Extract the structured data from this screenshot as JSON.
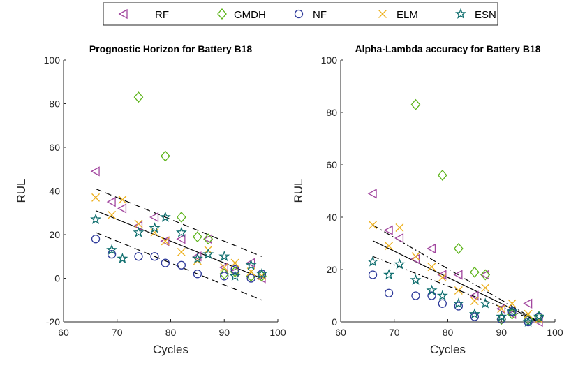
{
  "legend": {
    "entries": [
      {
        "name": "RF",
        "marker": "triangle-left",
        "color": "#A2479F"
      },
      {
        "name": "GMDH",
        "marker": "diamond",
        "color": "#5BB318"
      },
      {
        "name": "NF",
        "marker": "circle",
        "color": "#2E3A9A"
      },
      {
        "name": "ELM",
        "marker": "cross",
        "color": "#EDB120"
      },
      {
        "name": "ESN",
        "marker": "star",
        "color": "#0F6E6E"
      }
    ]
  },
  "chart_data": [
    {
      "type": "scatter",
      "title": "Prognostic Horizon for Battery B18",
      "xlabel": "Cycles",
      "ylabel": "RUL",
      "xlim": [
        60,
        100
      ],
      "ylim": [
        -20,
        100
      ],
      "xticks": [
        60,
        70,
        80,
        90,
        100
      ],
      "yticks": [
        -20,
        0,
        20,
        40,
        60,
        80,
        100
      ],
      "series": [
        {
          "name": "RF",
          "x": [
            66,
            69,
            71,
            74,
            77,
            79,
            82,
            85,
            87,
            90,
            92,
            95,
            97
          ],
          "y": [
            49,
            35,
            32,
            24,
            28,
            17,
            18,
            10,
            18,
            5,
            3,
            7,
            0
          ]
        },
        {
          "name": "GMDH",
          "x": [
            74,
            79,
            82,
            85,
            87,
            90,
            92,
            95,
            97
          ],
          "y": [
            83,
            56,
            28,
            19,
            18,
            2,
            3,
            1,
            1
          ]
        },
        {
          "name": "NF",
          "x": [
            66,
            69,
            74,
            77,
            79,
            82,
            85,
            90,
            92,
            95,
            97
          ],
          "y": [
            18,
            11,
            10,
            10,
            7,
            6,
            2,
            1,
            4,
            0,
            2
          ]
        },
        {
          "name": "ELM",
          "x": [
            66,
            69,
            71,
            74,
            77,
            79,
            82,
            85,
            87,
            90,
            92,
            95,
            97
          ],
          "y": [
            37,
            29,
            36,
            25,
            21,
            17,
            12,
            8,
            13,
            5,
            7,
            3,
            1
          ]
        },
        {
          "name": "ESN",
          "x": [
            66,
            69,
            71,
            74,
            77,
            79,
            82,
            85,
            87,
            90,
            92,
            95,
            97
          ],
          "y": [
            27,
            13,
            9,
            21,
            23,
            28,
            21,
            9,
            11,
            10,
            1,
            6,
            2
          ]
        }
      ],
      "reference_lines": [
        {
          "style": "solid",
          "x": [
            66,
            97
          ],
          "y": [
            31,
            0
          ]
        },
        {
          "style": "dashed",
          "x": [
            66,
            97
          ],
          "y": [
            41,
            10
          ]
        },
        {
          "style": "dashed",
          "x": [
            66,
            97
          ],
          "y": [
            21,
            -10
          ]
        }
      ]
    },
    {
      "type": "scatter",
      "title": "Alpha-Lambda accuracy for Battery B18",
      "xlabel": "Cycles",
      "ylabel": "RUL",
      "xlim": [
        60,
        100
      ],
      "ylim": [
        0,
        100
      ],
      "xticks": [
        60,
        70,
        80,
        90,
        100
      ],
      "yticks": [
        0,
        20,
        40,
        60,
        80,
        100
      ],
      "series": [
        {
          "name": "RF",
          "x": [
            66,
            69,
            71,
            74,
            77,
            79,
            82,
            85,
            87,
            90,
            92,
            95,
            97
          ],
          "y": [
            49,
            35,
            32,
            24,
            28,
            18,
            18,
            10,
            18,
            5,
            3,
            7,
            0
          ]
        },
        {
          "name": "GMDH",
          "x": [
            74,
            79,
            82,
            85,
            87,
            90,
            92,
            95,
            97
          ],
          "y": [
            83,
            56,
            28,
            19,
            18,
            1,
            3,
            1,
            2
          ]
        },
        {
          "name": "NF",
          "x": [
            66,
            69,
            74,
            77,
            79,
            82,
            85,
            90,
            92,
            95,
            97
          ],
          "y": [
            18,
            11,
            10,
            10,
            7,
            6,
            2,
            1,
            4,
            0,
            2
          ]
        },
        {
          "name": "ELM",
          "x": [
            66,
            69,
            71,
            74,
            77,
            79,
            82,
            85,
            87,
            90,
            92,
            95,
            97
          ],
          "y": [
            37,
            29,
            36,
            25,
            21,
            17,
            12,
            8,
            13,
            5,
            7,
            3,
            1
          ]
        },
        {
          "name": "ESN",
          "x": [
            66,
            69,
            71,
            74,
            77,
            79,
            82,
            85,
            87,
            90,
            92,
            95,
            97
          ],
          "y": [
            23,
            18,
            22,
            16,
            12,
            10,
            7,
            3,
            7,
            2,
            4,
            0,
            2
          ]
        }
      ],
      "reference_lines": [
        {
          "style": "solid",
          "x": [
            66,
            97
          ],
          "y": [
            31,
            0
          ]
        },
        {
          "style": "dashdot",
          "x": [
            66,
            97
          ],
          "y": [
            37,
            0
          ]
        },
        {
          "style": "dashdot",
          "x": [
            66,
            97
          ],
          "y": [
            25,
            0
          ]
        }
      ]
    }
  ]
}
